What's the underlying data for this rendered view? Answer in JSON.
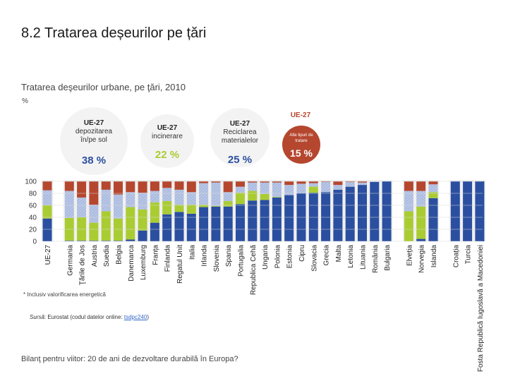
{
  "page": {
    "title": "8.2 Tratarea deșeurilor pe țări",
    "subtitle": "Tratarea deşeurilor urbane, pe ţări, 2010",
    "unit": "%",
    "footnote": "* Inclusiv valorificarea energetică",
    "source_label": "Sursă",
    "source_text": ": Eurostat (codul datelor online: ",
    "source_link": "tsdpc240",
    "source_end": ")",
    "footer": "Bilanţ pentru viitor: 20 de ani de dezvoltare durabilă în Europa?"
  },
  "legend": {
    "top_label": "UE-27",
    "bubbles": [
      {
        "name": "landfill",
        "label_line1": "UE-27",
        "label_line2": "depozitarea",
        "label_line3": "în/pe sol",
        "value": "38 %",
        "color": "#2b4fa0"
      },
      {
        "name": "incineration",
        "label_line1": "UE-27",
        "label_line2": "incinerare",
        "value": "22 %",
        "color": "#aacc33"
      },
      {
        "name": "recycling",
        "label_line1": "UE-27",
        "label_line2": "Reciclarea",
        "label_line3": "materialelor",
        "value": "25 %",
        "color": "#2b4fa0"
      },
      {
        "name": "other",
        "label_line1": "Alte tipuri de",
        "label_line2": "tratare",
        "value": "15 %",
        "color": "#b5472f"
      }
    ]
  },
  "chart_data": {
    "type": "bar",
    "stacked": true,
    "ylim": [
      0,
      100
    ],
    "yticks": [
      "0",
      "20",
      "40",
      "60",
      "80",
      "100"
    ],
    "categories": [
      "UE-27",
      "Germania",
      "Ţările de Jos",
      "Austria",
      "Suedia",
      "Belgia",
      "Danemarca",
      "Luxemburg",
      "Franța",
      "Finlanda",
      "Regatul Unit",
      "Italia",
      "Irlanda",
      "Slovenia",
      "Spania",
      "Portugalia",
      "Republica Cehă",
      "Ungaria",
      "Polonia",
      "Estonia",
      "Cipru",
      "Slovacia",
      "Grecia",
      "Malta",
      "Letonia",
      "Lituania",
      "România",
      "Bulgaria",
      "Elveția",
      "Norvegia",
      "Islanda",
      "Croația",
      "Turcia",
      "Fosta Republică Iugoslavă a Macedoniei"
    ],
    "series": [
      {
        "name": "Depozitarea în/pe sol",
        "color": "#2b4fa0",
        "values": [
          38,
          1,
          1,
          1,
          1,
          1,
          3,
          18,
          31,
          45,
          49,
          46,
          57,
          58,
          58,
          62,
          68,
          69,
          73,
          77,
          80,
          81,
          82,
          86,
          91,
          94,
          99,
          100,
          0,
          4,
          72,
          100,
          100,
          100
        ]
      },
      {
        "name": "Incinerare*",
        "color": "#aacc33",
        "values": [
          22,
          38,
          39,
          30,
          49,
          37,
          54,
          35,
          34,
          22,
          12,
          15,
          4,
          1,
          9,
          19,
          16,
          10,
          1,
          0,
          0,
          10,
          0,
          0,
          0,
          0,
          0,
          0,
          50,
          54,
          10,
          0,
          0,
          0
        ]
      },
      {
        "name": "Reciclarea materialelor",
        "color": "#ffffff",
        "values": [
          25,
          45,
          33,
          30,
          36,
          40,
          25,
          28,
          19,
          22,
          25,
          21,
          36,
          39,
          15,
          10,
          14,
          19,
          24,
          17,
          16,
          6,
          17,
          8,
          8,
          4,
          1,
          0,
          34,
          26,
          13,
          0,
          0,
          0
        ]
      },
      {
        "name": "Alte tipuri de tratare",
        "color": "#b5472f",
        "values": [
          15,
          16,
          27,
          39,
          14,
          22,
          18,
          19,
          16,
          11,
          14,
          18,
          3,
          2,
          18,
          9,
          2,
          2,
          2,
          6,
          4,
          3,
          1,
          6,
          1,
          2,
          0,
          0,
          16,
          16,
          5,
          0,
          0,
          0
        ]
      }
    ],
    "groups": [
      [
        0,
        0
      ],
      [
        1,
        27
      ],
      [
        28,
        30
      ],
      [
        31,
        33
      ]
    ],
    "title": "Tratarea deşeurilor urbane, pe ţări, 2010",
    "ylabel": "%"
  }
}
